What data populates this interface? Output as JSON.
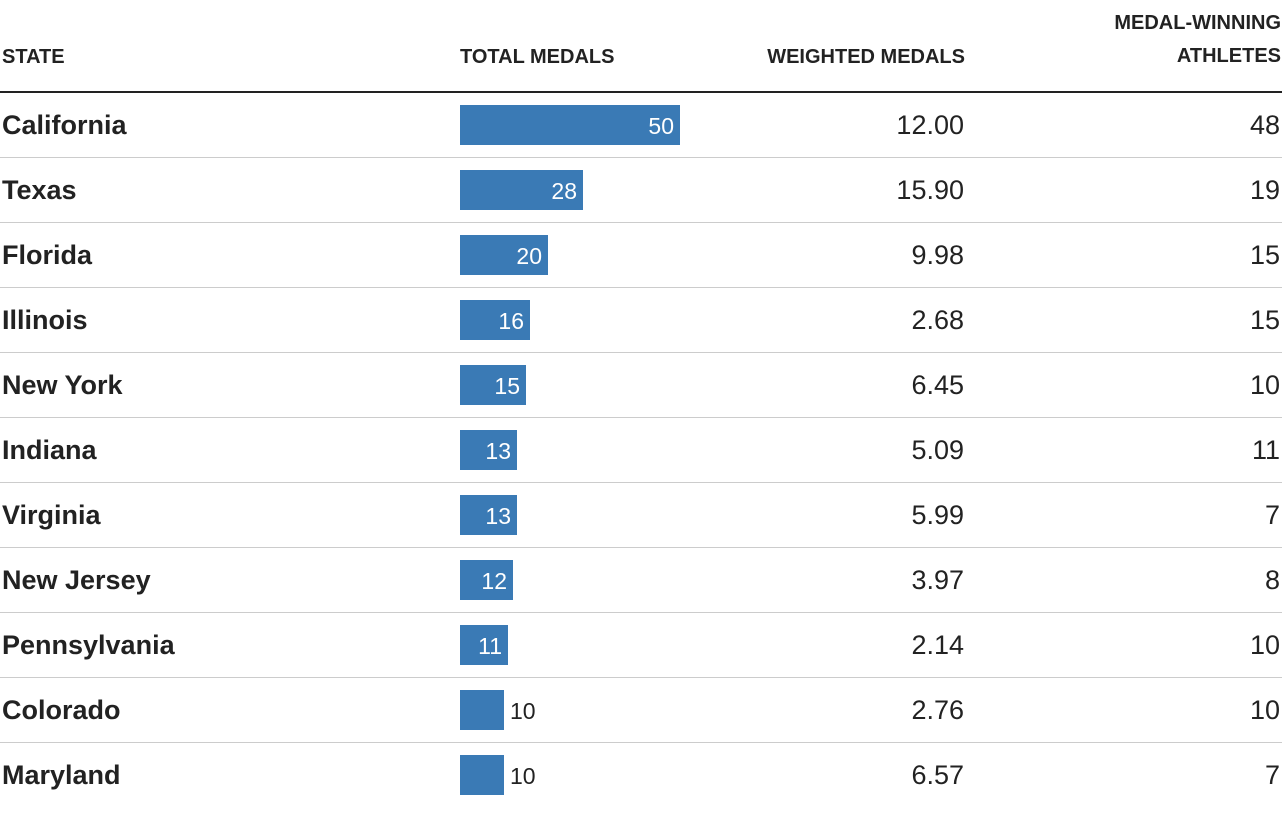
{
  "headers": {
    "state": "STATE",
    "total_medals": "TOTAL MEDALS",
    "weighted_medals": "WEIGHTED MEDALS",
    "athletes_line1": "MEDAL-WINNING",
    "athletes_line2": "ATHLETES"
  },
  "colors": {
    "bar": "#3a7ab5",
    "rule": "#222222",
    "divider": "#cccccc"
  },
  "chart_data": {
    "type": "table",
    "columns": [
      "STATE",
      "TOTAL MEDALS",
      "WEIGHTED MEDALS",
      "MEDAL-WINNING ATHLETES"
    ],
    "bar_column": "TOTAL MEDALS",
    "bar_max": 50,
    "rows": [
      {
        "state": "California",
        "total": 50,
        "weighted": "12.00",
        "athletes": "48"
      },
      {
        "state": "Texas",
        "total": 28,
        "weighted": "15.90",
        "athletes": "19"
      },
      {
        "state": "Florida",
        "total": 20,
        "weighted": "9.98",
        "athletes": "15"
      },
      {
        "state": "Illinois",
        "total": 16,
        "weighted": "2.68",
        "athletes": "15"
      },
      {
        "state": "New York",
        "total": 15,
        "weighted": "6.45",
        "athletes": "10"
      },
      {
        "state": "Indiana",
        "total": 13,
        "weighted": "5.09",
        "athletes": "11"
      },
      {
        "state": "Virginia",
        "total": 13,
        "weighted": "5.99",
        "athletes": "7"
      },
      {
        "state": "New Jersey",
        "total": 12,
        "weighted": "3.97",
        "athletes": "8"
      },
      {
        "state": "Pennsylvania",
        "total": 11,
        "weighted": "2.14",
        "athletes": "10"
      },
      {
        "state": "Colorado",
        "total": 10,
        "weighted": "2.76",
        "athletes": "10"
      },
      {
        "state": "Maryland",
        "total": 10,
        "weighted": "6.57",
        "athletes": "7"
      }
    ]
  }
}
